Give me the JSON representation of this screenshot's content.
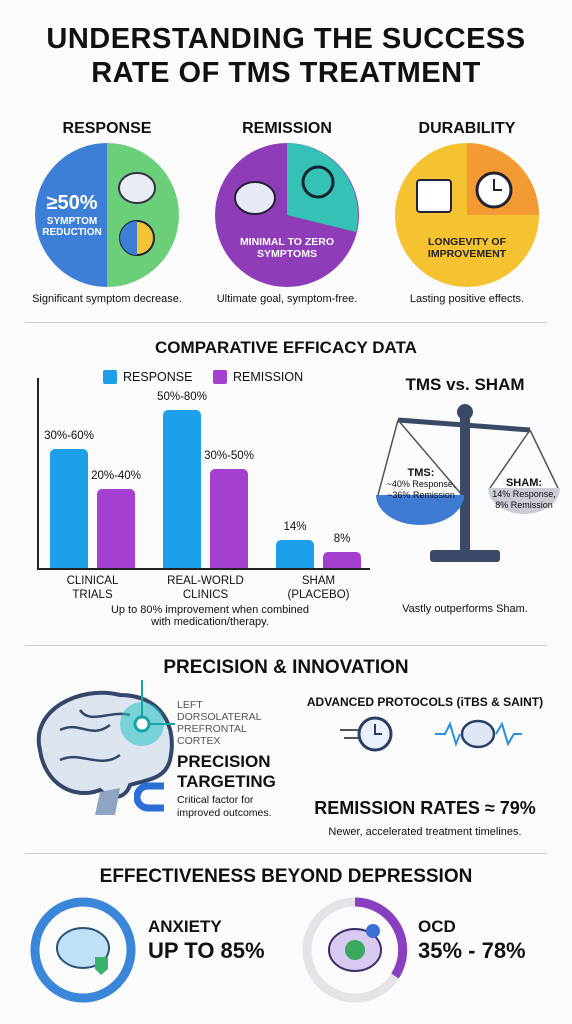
{
  "title": "UNDERSTANDING THE SUCCESS RATE OF TMS TREATMENT",
  "overview": [
    {
      "heading": "RESPONSE",
      "label_big": "≥50%",
      "label": "SYMPTOM REDUCTION",
      "caption": "Significant symptom decrease."
    },
    {
      "heading": "REMISSION",
      "label": "MINIMAL TO ZERO SYMPTOMS",
      "caption": "Ultimate goal, symptom-free."
    },
    {
      "heading": "DURABILITY",
      "label": "LONGEVITY OF IMPROVEMENT",
      "caption": "Lasting positive effects."
    }
  ],
  "chart_data": {
    "type": "bar",
    "title": "COMPARATIVE EFFICACY DATA",
    "categories": [
      "CLINICAL TRIALS",
      "REAL-WORLD CLINICS",
      "SHAM (PLACEBO)"
    ],
    "series": [
      {
        "name": "RESPONSE",
        "color": "#1d9fea",
        "values": [
          60,
          80,
          14
        ],
        "value_labels": [
          "30%-60%",
          "50%-80%",
          "14%"
        ]
      },
      {
        "name": "REMISSION",
        "color": "#a53fcf",
        "values": [
          40,
          50,
          8
        ],
        "value_labels": [
          "20%-40%",
          "30%-50%",
          "8%"
        ]
      }
    ],
    "ylim": [
      0,
      100
    ],
    "note": "Up to 80% improvement when combined with medication/therapy."
  },
  "comparison": {
    "title": "TMS vs. SHAM",
    "tms": {
      "label": "TMS:",
      "lines": [
        "~40% Response,",
        "~36% Remission"
      ]
    },
    "sham": {
      "label": "SHAM:",
      "lines": [
        "14% Response,",
        "8% Remission"
      ]
    },
    "caption": "Vastly outperforms Sham."
  },
  "precision": {
    "title": "PRECISION & INNOVATION",
    "region": [
      "LEFT",
      "DORSOLATERAL",
      "PREFRONTAL",
      "CORTEX"
    ],
    "heading": [
      "PRECISION",
      "TARGETING"
    ],
    "caption": [
      "Critical factor for",
      "improved outcomes."
    ],
    "protocols": "ADVANCED PROTOCOLS (iTBS & SAINT)",
    "remission": "REMISSION RATES ≈ 79%",
    "remission_note": "Newer, accelerated treatment timelines."
  },
  "beyond": {
    "title": "EFFECTIVENESS BEYOND DEPRESSION",
    "items": [
      {
        "name": "ANXIETY",
        "rate": "UP TO 85%"
      },
      {
        "name": "OCD",
        "rate": "35% - 78%"
      }
    ]
  }
}
